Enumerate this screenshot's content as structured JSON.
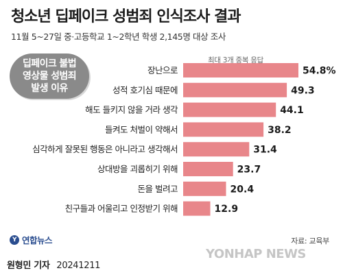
{
  "title": "청소년 딥페이크 성범죄 인식조사 결과",
  "subtitle": "11월 5~27일 중·고등학교 1~2학년 학생 2,145명 대상 조사",
  "note": "최대 3개 중복 응답",
  "badge": {
    "line1": "딥페이크 불법",
    "line2": "영상물 성범죄",
    "line3": "발생 이유"
  },
  "source": "자료: 교육부",
  "logo": {
    "mark": "Y",
    "text": "연합뉴스"
  },
  "watermark": "YONHAP NEWS",
  "footer": {
    "reporter": "원형민 기자",
    "date": "20241211"
  },
  "colors": {
    "bar": "#e8868a",
    "badge": "#8a8a8a",
    "logo": "#2a4d8f"
  },
  "chart_data": {
    "type": "bar",
    "orientation": "horizontal",
    "categories": [
      "장난으로",
      "성적 호기심 때문에",
      "해도 들키지 않을 거라 생각",
      "들켜도 처벌이 약해서",
      "심각하게 잘못된 행동은 아니라고 생각해서",
      "상대방을 괴롭히기 위해",
      "돈을 벌려고",
      "친구들과 어울리고 인정받기 위해"
    ],
    "values": [
      54.8,
      49.3,
      44.1,
      38.2,
      31.4,
      23.7,
      20.4,
      12.9
    ],
    "labels": [
      "54.8%",
      "49.3",
      "44.1",
      "38.2",
      "31.4",
      "23.7",
      "20.4",
      "12.9"
    ],
    "title": "",
    "xlabel": "",
    "ylabel": "",
    "unit": "%",
    "grid": false,
    "legend": "none"
  }
}
